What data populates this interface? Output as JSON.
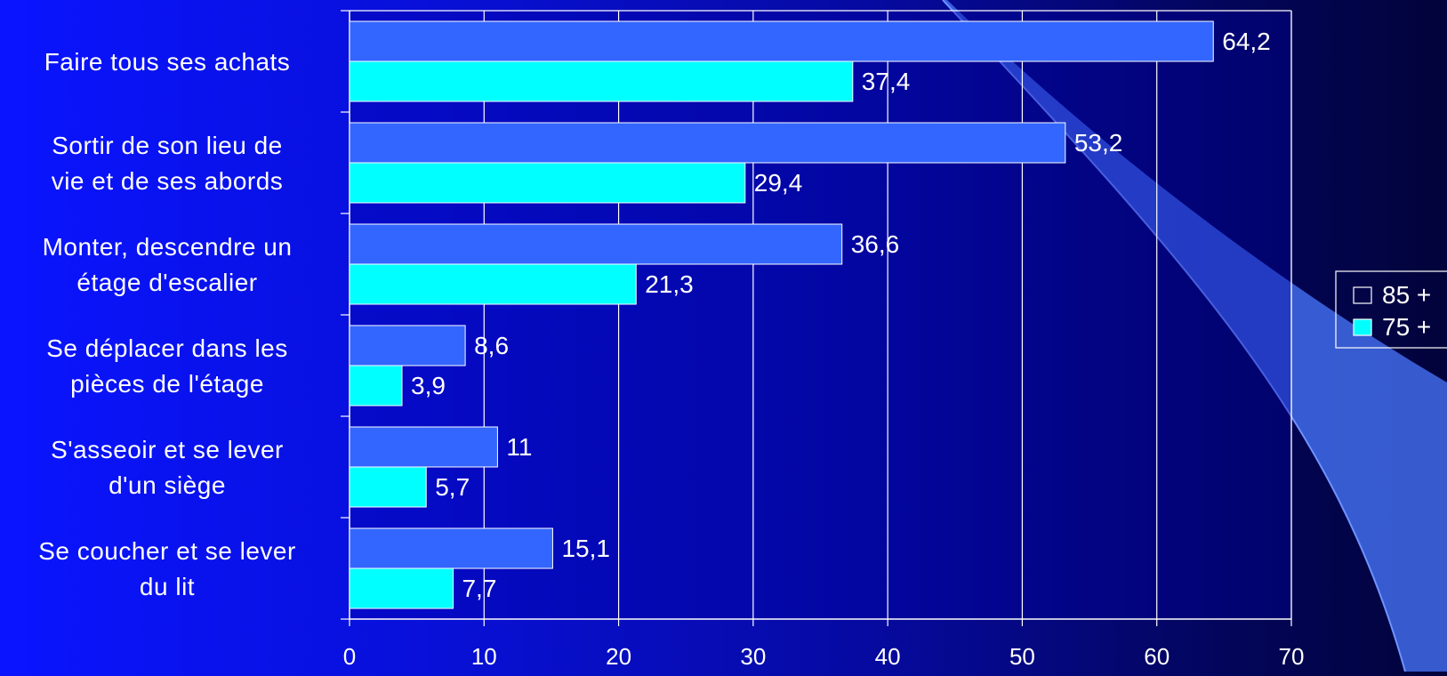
{
  "chart_data": {
    "type": "bar",
    "orientation": "horizontal",
    "title": "",
    "xlabel": "",
    "ylabel": "",
    "xlim": [
      0,
      70
    ],
    "x_ticks": [
      "0",
      "10",
      "20",
      "30",
      "40",
      "50",
      "60",
      "70"
    ],
    "grid": true,
    "legend_position": "right",
    "categories": [
      [
        "Faire tous ses achats"
      ],
      [
        "Sortir de son lieu de",
        "vie et de ses abords"
      ],
      [
        "Monter, descendre un",
        "étage d'escalier"
      ],
      [
        "Se déplacer dans les",
        "pièces de l'étage"
      ],
      [
        "S'asseoir et se lever",
        "d'un siège"
      ],
      [
        "Se coucher et se lever",
        "du lit"
      ]
    ],
    "series": [
      {
        "name": "85 +",
        "color": "#3366ff",
        "values": [
          64.2,
          53.2,
          36.6,
          8.6,
          11,
          15.1
        ],
        "labels": [
          "64,2",
          "53,2",
          "36,6",
          "8,6",
          "11",
          "15,1"
        ]
      },
      {
        "name": "75 +",
        "color": "#00ffff",
        "values": [
          37.4,
          29.4,
          21.3,
          3.9,
          5.7,
          7.7
        ],
        "labels": [
          "37,4",
          "29,4",
          "21,3",
          "3,9",
          "5,7",
          "7,7"
        ]
      }
    ]
  },
  "colors": {
    "text": "#ffffff",
    "plot_background": "#0000a0",
    "gridline": "#ffffff",
    "swoosh": "#4a78ff"
  }
}
